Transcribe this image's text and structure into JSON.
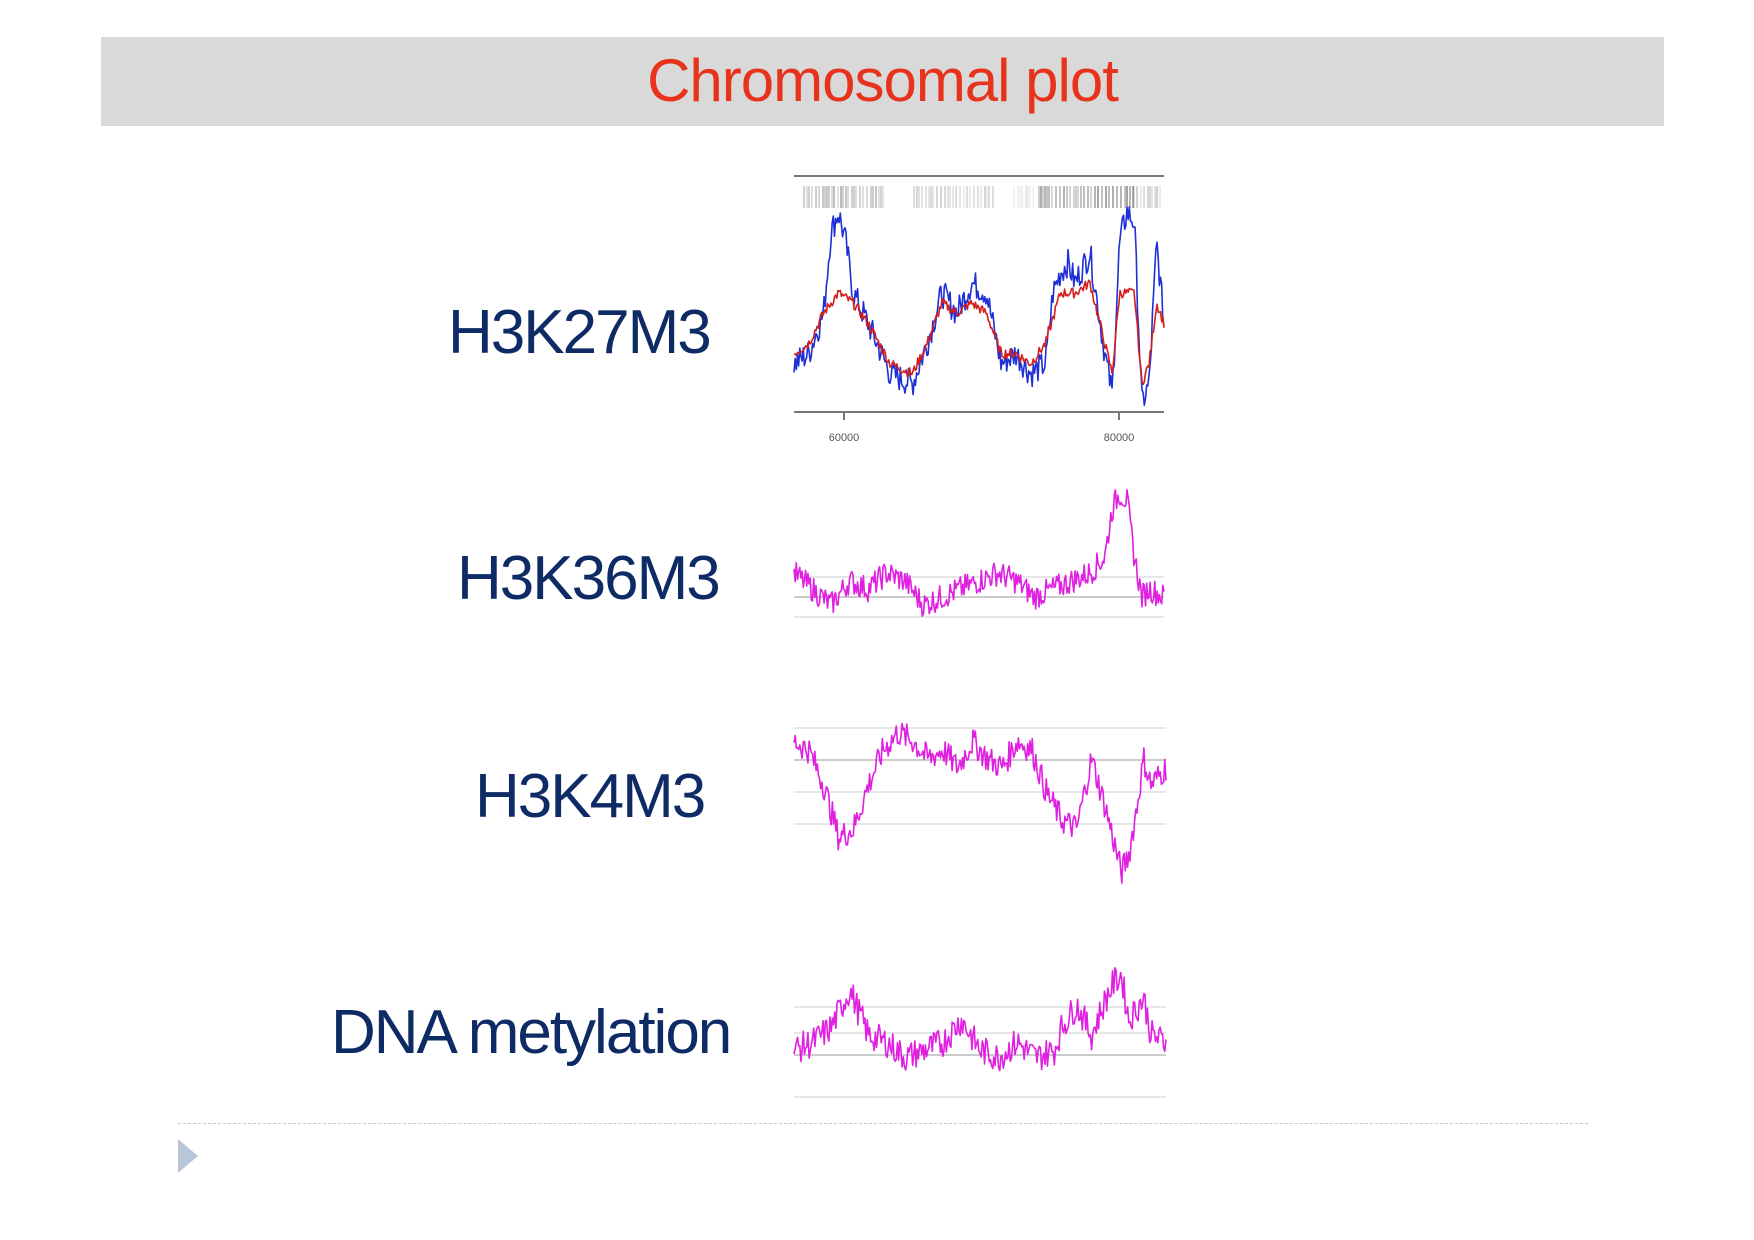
{
  "title": "Chromosomal plot",
  "colors": {
    "title": "#e8331c",
    "label": "#0f2b66",
    "blue_series": "#1f2fd6",
    "red_series": "#d41f1f",
    "magenta_series": "#e020e0",
    "axis": "#777777",
    "gridline": "#cccccc",
    "nav_arrow": "#b8c7d8"
  },
  "icons": {
    "footer": "triangle-right-icon"
  },
  "tracks": [
    {
      "label": "H3K27M3",
      "chart_data": {
        "type": "line",
        "x_ticks": [
          "60000",
          "80000"
        ],
        "series": [
          {
            "color": "blue",
            "x": [
              0,
              0.04,
              0.08,
              0.1,
              0.12,
              0.14,
              0.16,
              0.2,
              0.26,
              0.32,
              0.36,
              0.4,
              0.44,
              0.48,
              0.52,
              0.56,
              0.6,
              0.64,
              0.68,
              0.7,
              0.72,
              0.74,
              0.76,
              0.8,
              0.84,
              0.86,
              0.88,
              0.9,
              0.92,
              0.94,
              0.96,
              0.98,
              1.0
            ],
            "y": [
              0.2,
              0.25,
              0.45,
              0.85,
              0.95,
              0.8,
              0.55,
              0.4,
              0.15,
              0.1,
              0.3,
              0.55,
              0.45,
              0.6,
              0.55,
              0.2,
              0.25,
              0.15,
              0.2,
              0.55,
              0.65,
              0.7,
              0.6,
              0.75,
              0.25,
              0.05,
              0.8,
              0.95,
              0.9,
              0.0,
              0.1,
              0.8,
              0.4
            ]
          },
          {
            "color": "red",
            "x": [
              0,
              0.04,
              0.08,
              0.12,
              0.16,
              0.2,
              0.26,
              0.32,
              0.36,
              0.4,
              0.44,
              0.48,
              0.52,
              0.56,
              0.6,
              0.64,
              0.68,
              0.72,
              0.76,
              0.8,
              0.84,
              0.86,
              0.88,
              0.92,
              0.94,
              0.96,
              0.98,
              1.0
            ],
            "y": [
              0.25,
              0.3,
              0.45,
              0.55,
              0.5,
              0.4,
              0.2,
              0.15,
              0.3,
              0.5,
              0.45,
              0.5,
              0.45,
              0.25,
              0.25,
              0.2,
              0.3,
              0.55,
              0.55,
              0.6,
              0.3,
              0.15,
              0.55,
              0.55,
              0.1,
              0.2,
              0.5,
              0.4
            ]
          }
        ]
      }
    },
    {
      "label": "H3K36M3",
      "chart_data": {
        "type": "line",
        "series": [
          {
            "color": "magenta",
            "x": [
              0,
              0.05,
              0.1,
              0.15,
              0.2,
              0.25,
              0.3,
              0.35,
              0.4,
              0.45,
              0.5,
              0.55,
              0.6,
              0.65,
              0.7,
              0.75,
              0.8,
              0.84,
              0.86,
              0.88,
              0.9,
              0.92,
              0.94,
              0.96,
              1.0
            ],
            "y": [
              0.45,
              0.35,
              0.25,
              0.4,
              0.35,
              0.45,
              0.4,
              0.25,
              0.3,
              0.35,
              0.4,
              0.45,
              0.4,
              0.3,
              0.35,
              0.4,
              0.45,
              0.55,
              0.85,
              0.95,
              0.9,
              0.55,
              0.3,
              0.35,
              0.3
            ]
          }
        ]
      }
    },
    {
      "label": "H3K4M3",
      "chart_data": {
        "type": "line",
        "series": [
          {
            "color": "magenta",
            "x": [
              0,
              0.04,
              0.08,
              0.12,
              0.16,
              0.2,
              0.24,
              0.28,
              0.32,
              0.36,
              0.4,
              0.44,
              0.48,
              0.52,
              0.56,
              0.6,
              0.64,
              0.68,
              0.72,
              0.76,
              0.8,
              0.84,
              0.88,
              0.9,
              0.92,
              0.94,
              0.96,
              1.0
            ],
            "y": [
              0.85,
              0.8,
              0.6,
              0.3,
              0.35,
              0.6,
              0.8,
              0.9,
              0.85,
              0.75,
              0.8,
              0.7,
              0.85,
              0.75,
              0.7,
              0.85,
              0.8,
              0.55,
              0.4,
              0.35,
              0.75,
              0.45,
              0.1,
              0.2,
              0.45,
              0.75,
              0.6,
              0.7
            ]
          }
        ]
      }
    },
    {
      "label": "DNA metylation",
      "chart_data": {
        "type": "line",
        "series": [
          {
            "color": "magenta",
            "x": [
              0,
              0.05,
              0.1,
              0.15,
              0.2,
              0.25,
              0.3,
              0.35,
              0.4,
              0.45,
              0.5,
              0.55,
              0.6,
              0.65,
              0.7,
              0.72,
              0.76,
              0.8,
              0.84,
              0.86,
              0.88,
              0.9,
              0.94,
              0.96,
              1.0
            ],
            "y": [
              0.4,
              0.45,
              0.55,
              0.8,
              0.5,
              0.45,
              0.35,
              0.4,
              0.45,
              0.6,
              0.4,
              0.35,
              0.45,
              0.35,
              0.4,
              0.55,
              0.7,
              0.5,
              0.75,
              0.85,
              0.9,
              0.6,
              0.75,
              0.5,
              0.45
            ]
          }
        ]
      }
    }
  ]
}
